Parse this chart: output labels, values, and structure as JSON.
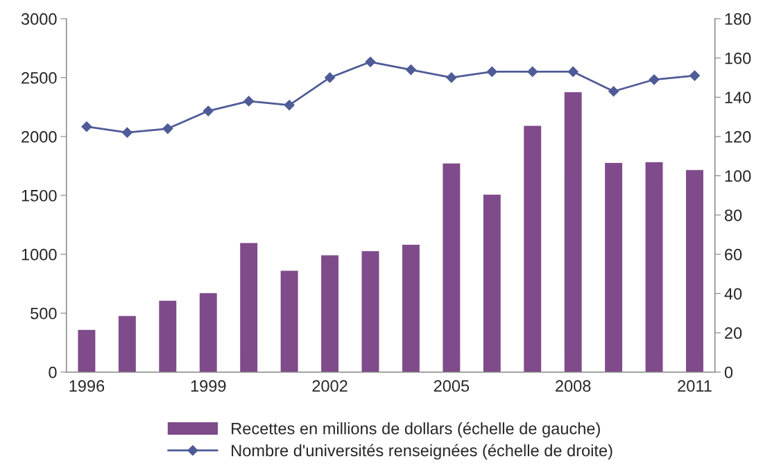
{
  "chart_data": {
    "type": "bar",
    "categories": [
      "1996",
      null,
      null,
      "1999",
      null,
      null,
      "2002",
      null,
      null,
      "2005",
      null,
      null,
      "2008",
      null,
      null,
      "2011"
    ],
    "series": [
      {
        "name": "Recettes en millions de dollars (échelle de gauche)",
        "color": "#7f4b8a",
        "values": [
          362,
          480,
          610,
          675,
          1100,
          865,
          995,
          1030,
          1085,
          1775,
          1510,
          2095,
          2380,
          1780,
          1785,
          1720
        ]
      },
      {
        "name": "Nombre d'universités renseignées (échelle de droite)",
        "type": "line",
        "axis": "y2",
        "color": "#4f5b96",
        "marker": "diamond",
        "values": [
          125,
          122,
          124,
          133,
          138,
          136,
          150,
          158,
          154,
          150,
          153,
          153,
          153,
          143,
          149,
          151
        ]
      }
    ],
    "ylim": [
      0,
      3000
    ],
    "yticks": [
      0,
      500,
      1000,
      1500,
      2000,
      2500,
      3000
    ],
    "y2lim": [
      0,
      180
    ],
    "y2ticks": [
      0,
      20,
      40,
      60,
      80,
      100,
      120,
      140,
      160,
      180
    ],
    "grid": false,
    "legend": "bottom"
  }
}
